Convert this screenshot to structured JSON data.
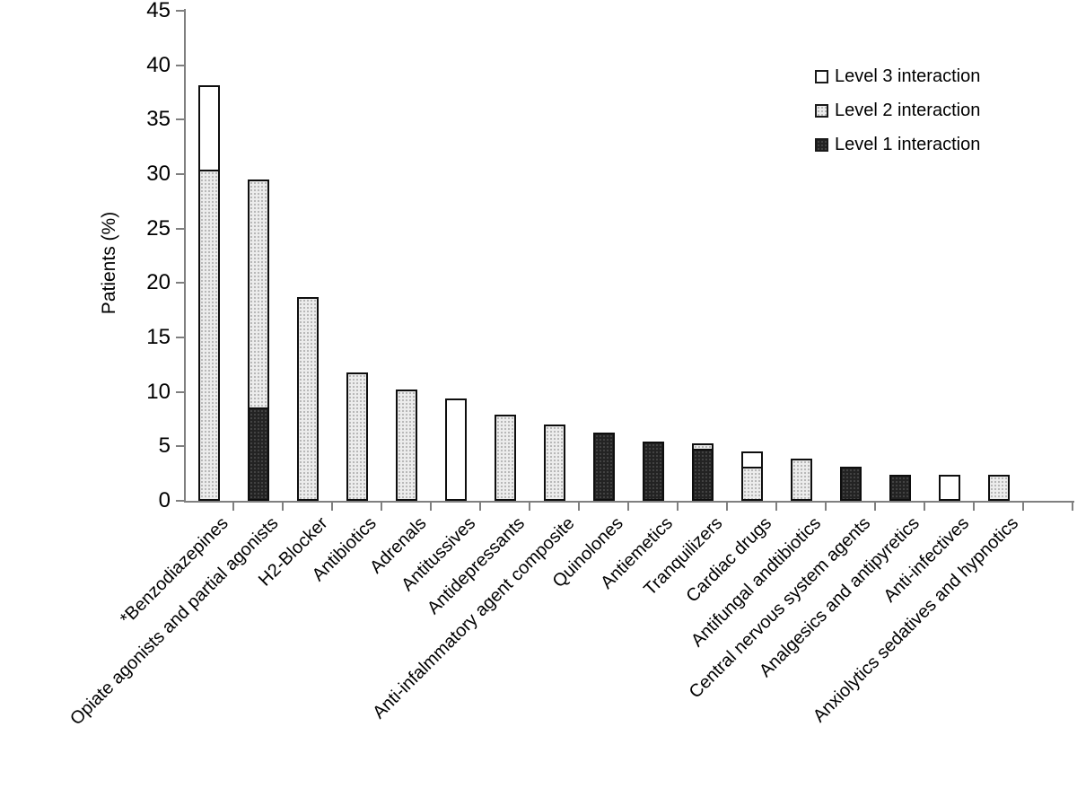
{
  "figure": {
    "background": "#ffffff"
  },
  "colors": {
    "level1_fill": "#232323",
    "level2_fill": "#ececec",
    "level3_fill": "#ffffff",
    "bar_border": "#0e0e0e",
    "axis": "#7f7f7f",
    "text": "#000000"
  },
  "legend": {
    "position": "top-right",
    "items": [
      {
        "label": "Level 3 interaction",
        "level": 3
      },
      {
        "label": "Level 2 interaction",
        "level": 2
      },
      {
        "label": "Level 1 interaction",
        "level": 1
      }
    ]
  },
  "chart_data": {
    "type": "bar",
    "stacked": true,
    "title": "",
    "xlabel": "",
    "ylabel": "Patients (%)",
    "ylim": [
      0,
      45
    ],
    "ytick_step": 5,
    "yticks": [
      0,
      5,
      10,
      15,
      20,
      25,
      30,
      35,
      40,
      45
    ],
    "grid": false,
    "legend_position": "top-right",
    "x_label_rotation_deg": 45,
    "categories": [
      "*Benzodiazepines",
      "Opiate agonists and partial agonists",
      "H2-Blocker",
      "Antibiotics",
      "Adrenals",
      "Antitussives",
      "Antidepressants",
      "Anti-infalmmatory agent composite",
      "Quinolones",
      "Antiemetics",
      "Tranquilizers",
      "Cardiac drugs",
      "Antifungal andtibiotics",
      "Central nervous system agents",
      "Analgesics and antipyretics",
      "Anti-infectives",
      "Anxiolytics sedatives and hypnotics"
    ],
    "series": [
      {
        "name": "Level 1 interaction",
        "level": 1,
        "values": [
          0,
          8.6,
          0,
          0,
          0,
          0,
          0,
          0,
          6.3,
          5.4,
          4.8,
          0,
          0,
          3.1,
          2.4,
          0,
          0
        ]
      },
      {
        "name": "Level 2 interaction",
        "level": 2,
        "values": [
          30.4,
          21.1,
          18.7,
          11.8,
          10.2,
          0,
          7.9,
          7.0,
          0,
          0,
          0.7,
          3.1,
          3.9,
          0,
          0,
          0,
          2.4
        ]
      },
      {
        "name": "Level 3 interaction",
        "level": 3,
        "values": [
          7.9,
          0,
          0,
          0,
          0,
          9.4,
          0,
          0,
          0,
          0,
          0,
          1.6,
          0,
          0,
          0,
          2.4,
          0
        ]
      }
    ],
    "totals": [
      38.3,
      29.7,
      18.7,
      11.8,
      10.2,
      9.4,
      7.9,
      7.0,
      6.3,
      5.4,
      5.5,
      4.7,
      3.9,
      3.1,
      2.4,
      2.4,
      2.4
    ]
  }
}
